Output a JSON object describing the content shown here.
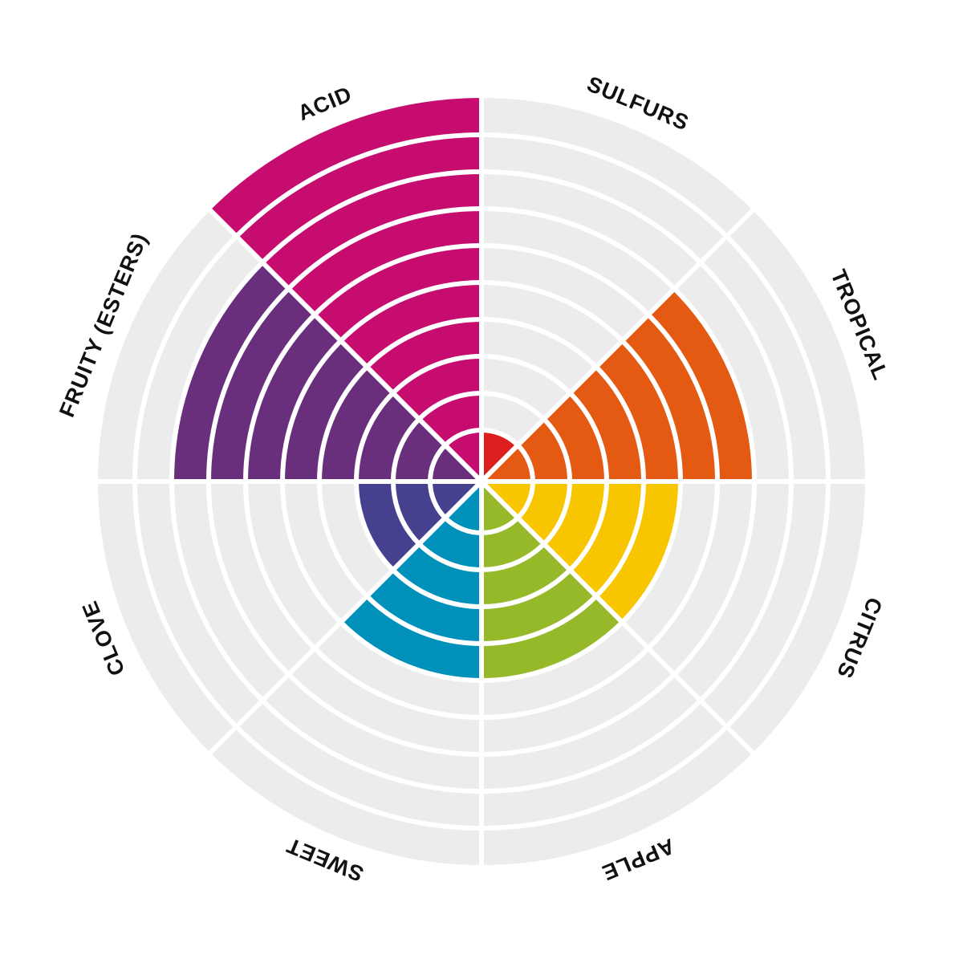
{
  "chart_data": {
    "type": "radial_bar",
    "max_level": 10,
    "title": "",
    "categories": [
      {
        "name": "SULFURS",
        "value": 1,
        "color": "#dc1e1e"
      },
      {
        "name": "TROPICAL",
        "value": 7,
        "color": "#e45a12"
      },
      {
        "name": "CITRUS",
        "value": 5,
        "color": "#f7c600"
      },
      {
        "name": "APPLE",
        "value": 5,
        "color": "#95b928"
      },
      {
        "name": "SWEET",
        "value": 5,
        "color": "#0091bb"
      },
      {
        "name": "CLOVE",
        "value": 3,
        "color": "#45418f"
      },
      {
        "name": "FRUITY (ESTERS)",
        "value": 8,
        "color": "#6a2f7c"
      },
      {
        "name": "ACID",
        "value": 10,
        "color": "#c60c6f"
      }
    ],
    "grid": true,
    "background_color": "#ececec"
  }
}
